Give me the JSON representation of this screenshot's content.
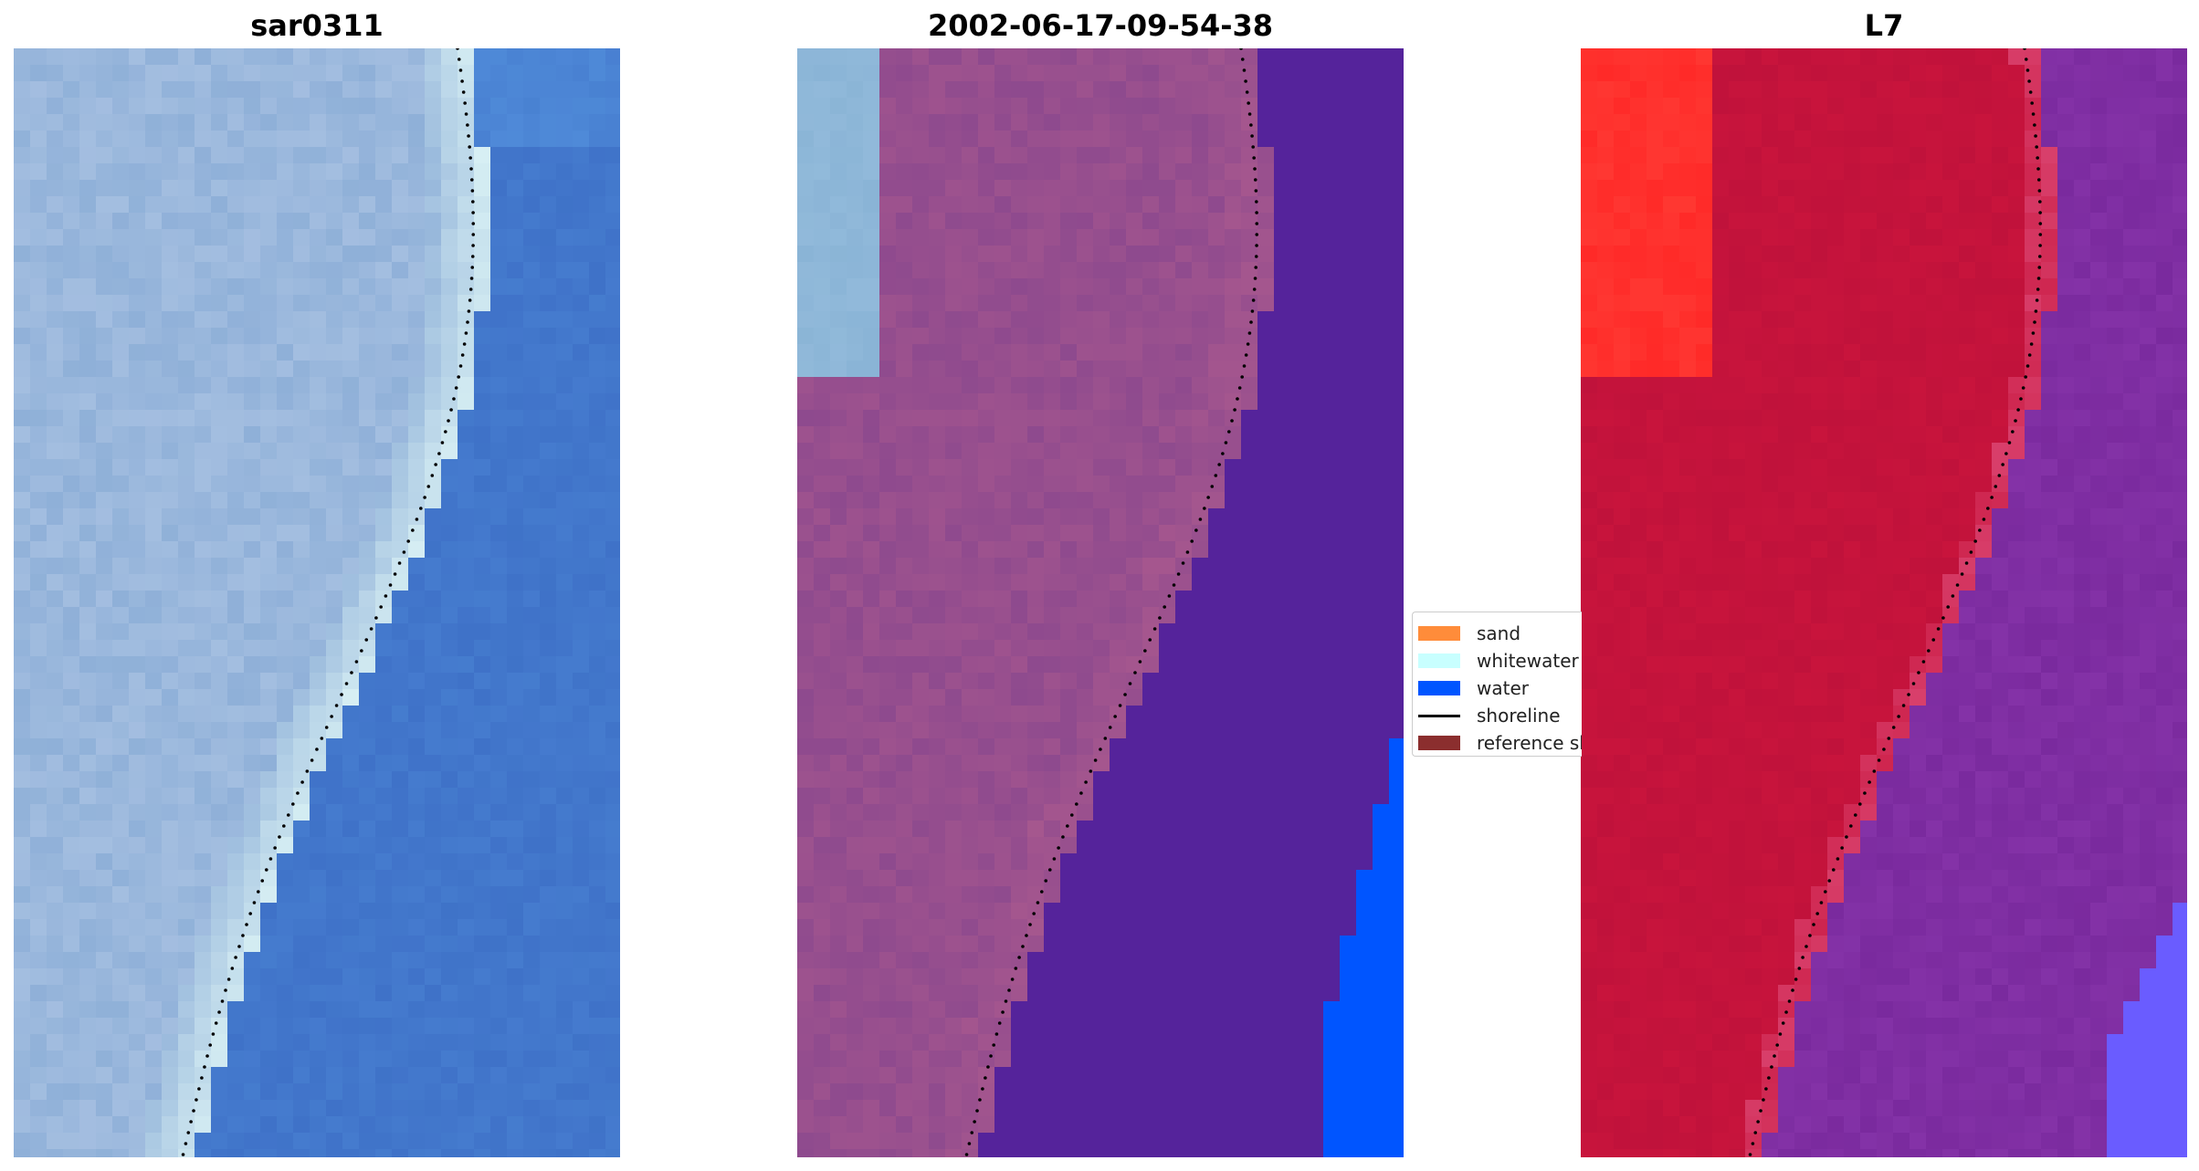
{
  "panels": [
    {
      "title": "sar0311",
      "style": "rgb"
    },
    {
      "title": "2002-06-17-09-54-38",
      "style": "classified"
    },
    {
      "title": "L7",
      "style": "mndwi"
    }
  ],
  "legend": {
    "items": [
      {
        "label": "sand",
        "kind": "patch",
        "color": "#ff8c3a"
      },
      {
        "label": "whitewater",
        "kind": "patch",
        "color": "#c8ffff"
      },
      {
        "label": "water",
        "kind": "patch",
        "color": "#0055ff"
      },
      {
        "label": "shoreline",
        "kind": "line",
        "color": "#000000"
      },
      {
        "label": "reference shoreline",
        "kind": "patch",
        "color": "#8b2e2e"
      }
    ]
  },
  "colors": {
    "water_rgb": "#3f72c8",
    "land_rgb": "#8fb0d8",
    "surf_rgb": "#d8f0f4",
    "water_class": "#55239b",
    "land_class": "#8e4a8e",
    "land_class_hi": "#a8588e",
    "water_class_alt": "#0055ff",
    "land_light": "#8ab4d6",
    "mndwi_land": "#c8143c",
    "mndwi_land_hi": "#ff2a28",
    "mndwi_water": "#7a2a9e",
    "mndwi_water_alt": "#6a5cff",
    "shoreline": "#000000"
  }
}
